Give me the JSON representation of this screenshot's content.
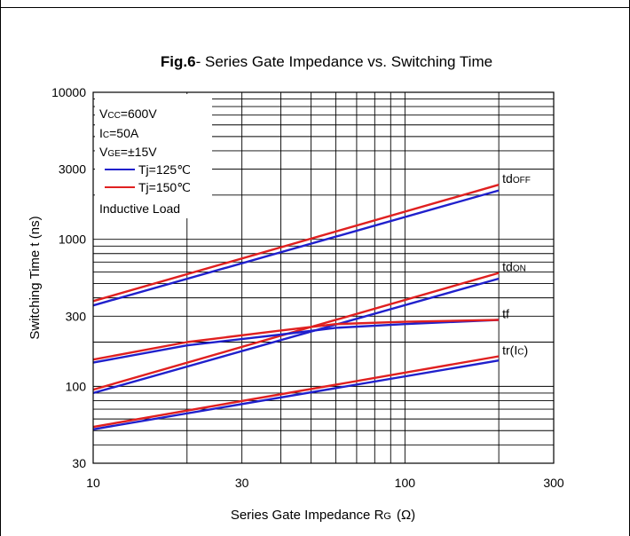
{
  "chart_data": {
    "type": "line",
    "title": {
      "fig": "Fig.6",
      "text": "- Series Gate Impedance vs. Switching Time"
    },
    "xaxis": {
      "scale": "log",
      "range": [
        10,
        300
      ],
      "ticks": [
        10,
        30,
        100,
        300
      ],
      "tick_labels": [
        "10",
        "30",
        "100",
        "300"
      ],
      "label_main": "Series Gate Impedance R",
      "label_sub": "G",
      "label_unit": "(Ω)"
    },
    "yaxis": {
      "scale": "log",
      "range": [
        30,
        10000
      ],
      "ticks": [
        30,
        100,
        300,
        1000,
        3000,
        10000
      ],
      "tick_labels": [
        "30",
        "100",
        "300",
        "1000",
        "3000",
        "10000"
      ],
      "label": "Switching Time t  (ns)"
    },
    "grid": true,
    "conditions": [
      {
        "main": "V",
        "sub": "CC",
        "rest": "=600V"
      },
      {
        "main": "I",
        "sub": "C",
        "rest": "=50A"
      },
      {
        "main": "V",
        "sub": "GE",
        "rest": "=±15V"
      }
    ],
    "legend": {
      "position": "top-left",
      "entries": [
        {
          "label": "Tj=125℃",
          "color": "#2020cc"
        },
        {
          "label": "Tj=150℃",
          "color": "#e02020"
        }
      ]
    },
    "note": "Inductive Load",
    "curves": [
      {
        "label_main": "td",
        "label_sub": "OFF",
        "label_tail": "",
        "series": [
          {
            "name": "Tj=125℃",
            "x": [
              10,
              200
            ],
            "y": [
              355,
              2150
            ]
          },
          {
            "name": "Tj=150℃",
            "x": [
              10,
              200
            ],
            "y": [
              380,
              2350
            ]
          }
        ]
      },
      {
        "label_main": "td",
        "label_sub": "ON",
        "label_tail": "",
        "series": [
          {
            "name": "Tj=125℃",
            "x": [
              10,
              200
            ],
            "y": [
              90,
              540
            ]
          },
          {
            "name": "Tj=150℃",
            "x": [
              10,
              200
            ],
            "y": [
              95,
              590
            ]
          }
        ]
      },
      {
        "label_main": "tf",
        "label_sub": "",
        "label_tail": "",
        "series": [
          {
            "name": "Tj=125℃",
            "x": [
              10,
              20,
              40,
              60,
              100,
              200
            ],
            "y": [
              145,
              190,
              225,
              250,
              265,
              283
            ]
          },
          {
            "name": "Tj=150℃",
            "x": [
              10,
              20,
              40,
              60,
              100,
              200
            ],
            "y": [
              152,
              200,
              240,
              265,
              275,
              283
            ]
          }
        ]
      },
      {
        "label_main": "tr(I",
        "label_sub": "C",
        "label_tail": ")",
        "series": [
          {
            "name": "Tj=125℃",
            "x": [
              10,
              200
            ],
            "y": [
              51,
              150
            ]
          },
          {
            "name": "Tj=150℃",
            "x": [
              10,
              200
            ],
            "y": [
              53,
              160
            ]
          }
        ]
      }
    ]
  }
}
